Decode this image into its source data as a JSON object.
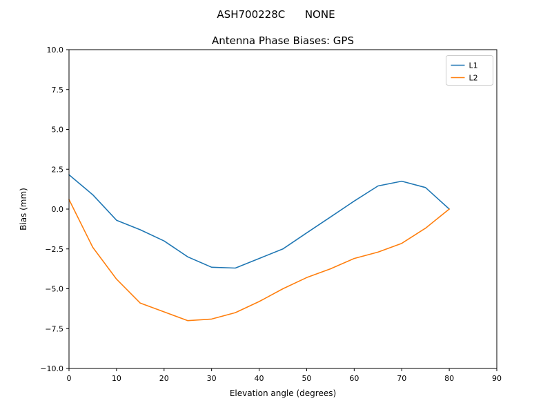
{
  "figure": {
    "suptitle": "ASH700228C      NONE"
  },
  "chart_data": {
    "type": "line",
    "suptitle": "ASH700228C      NONE",
    "title": "Antenna Phase Biases: GPS",
    "xlabel": "Elevation angle (degrees)",
    "ylabel": "Bias (mm)",
    "xlim": [
      0,
      90
    ],
    "ylim": [
      -10,
      10
    ],
    "xticks": [
      0,
      10,
      20,
      30,
      40,
      50,
      60,
      70,
      80,
      90
    ],
    "xticklabels": [
      "0",
      "10",
      "20",
      "30",
      "40",
      "50",
      "60",
      "70",
      "80",
      "90"
    ],
    "yticks": [
      -10.0,
      -7.5,
      -5.0,
      -2.5,
      0.0,
      2.5,
      5.0,
      7.5,
      10.0
    ],
    "yticklabels": [
      "−10.0",
      "−7.5",
      "−5.0",
      "−2.5",
      "0.0",
      "2.5",
      "5.0",
      "7.5",
      "10.0"
    ],
    "grid": false,
    "legend_position": "upper right",
    "x": [
      0,
      5,
      10,
      15,
      20,
      25,
      30,
      35,
      40,
      45,
      50,
      55,
      60,
      65,
      70,
      75,
      80
    ],
    "series": [
      {
        "name": "L1",
        "color": "#1f77b4",
        "values": [
          2.15,
          0.9,
          -0.7,
          -1.3,
          -2.0,
          -3.0,
          -3.65,
          -3.7,
          -3.1,
          -2.5,
          -1.5,
          -0.5,
          0.5,
          1.45,
          1.75,
          1.35,
          0.0
        ]
      },
      {
        "name": "L2",
        "color": "#ff7f0e",
        "values": [
          0.6,
          -2.4,
          -4.4,
          -5.9,
          -6.45,
          -7.0,
          -6.9,
          -6.5,
          -5.8,
          -5.0,
          -4.3,
          -3.75,
          -3.1,
          -2.7,
          -2.15,
          -1.2,
          0.0
        ]
      }
    ],
    "spine_color": "#000000"
  }
}
